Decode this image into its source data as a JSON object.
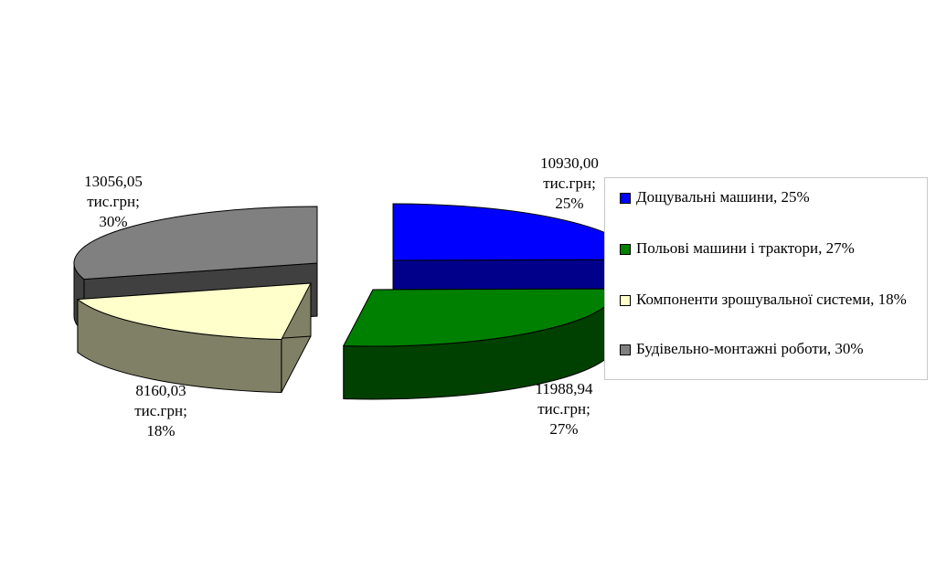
{
  "chart_data": {
    "type": "pie",
    "title": "",
    "unit": "тис.грн",
    "slices": [
      {
        "value": 10930.0,
        "value_text": "10930,00",
        "unit_text": "тис.грн;",
        "percent": 25,
        "percent_text": "25%",
        "legend": "Дощувальні машини, 25%",
        "color": "#0000FF",
        "side_color": "#00008B"
      },
      {
        "value": 11988.94,
        "value_text": "11988,94",
        "unit_text": "тис.грн;",
        "percent": 27,
        "percent_text": "27%",
        "legend": "Польові машини і трактори, 27%",
        "color": "#008000",
        "side_color": "#004000"
      },
      {
        "value": 8160.03,
        "value_text": "8160,03",
        "unit_text": "тис.грн;",
        "percent": 18,
        "percent_text": "18%",
        "legend": "Компоненти зрошувальної системи, 18%",
        "color": "#FFFFCC",
        "side_color": "#808066"
      },
      {
        "value": 13056.05,
        "value_text": "13056,05",
        "unit_text": "тис.грн;",
        "percent": 30,
        "percent_text": "30%",
        "legend": "Будівельно-монтажні роботи, 30%",
        "color": "#808080",
        "side_color": "#404040"
      }
    ],
    "legend_position": "right",
    "exploded": true,
    "style": "3d"
  }
}
